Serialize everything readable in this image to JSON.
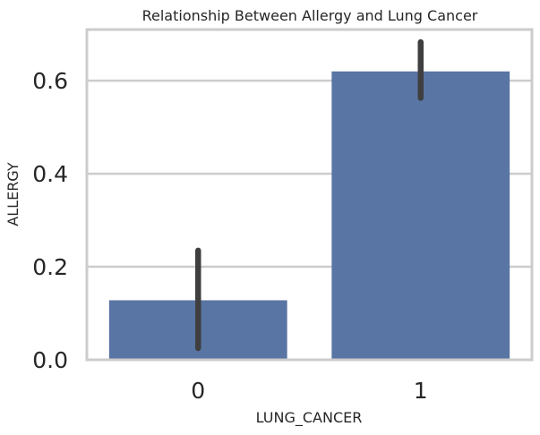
{
  "chart_data": {
    "type": "bar",
    "title": "Relationship Between Allergy and Lung Cancer",
    "xlabel": "LUNG_CANCER",
    "ylabel": "ALLERGY",
    "categories": [
      "0",
      "1"
    ],
    "values": [
      0.128,
      0.62
    ],
    "error_bars": [
      {
        "low": 0.025,
        "high": 0.235
      },
      {
        "low": 0.563,
        "high": 0.683
      }
    ],
    "ylim": [
      0,
      0.71
    ],
    "yticks": [
      0.0,
      0.2,
      0.4,
      0.6
    ],
    "ytick_labels": [
      "0.0",
      "0.2",
      "0.4",
      "0.6"
    ],
    "grid": true,
    "colors": {
      "bar": "#5975a4",
      "errorbar": "#3f3f3f",
      "grid": "#cccccc",
      "spine": "#cccccc"
    }
  }
}
